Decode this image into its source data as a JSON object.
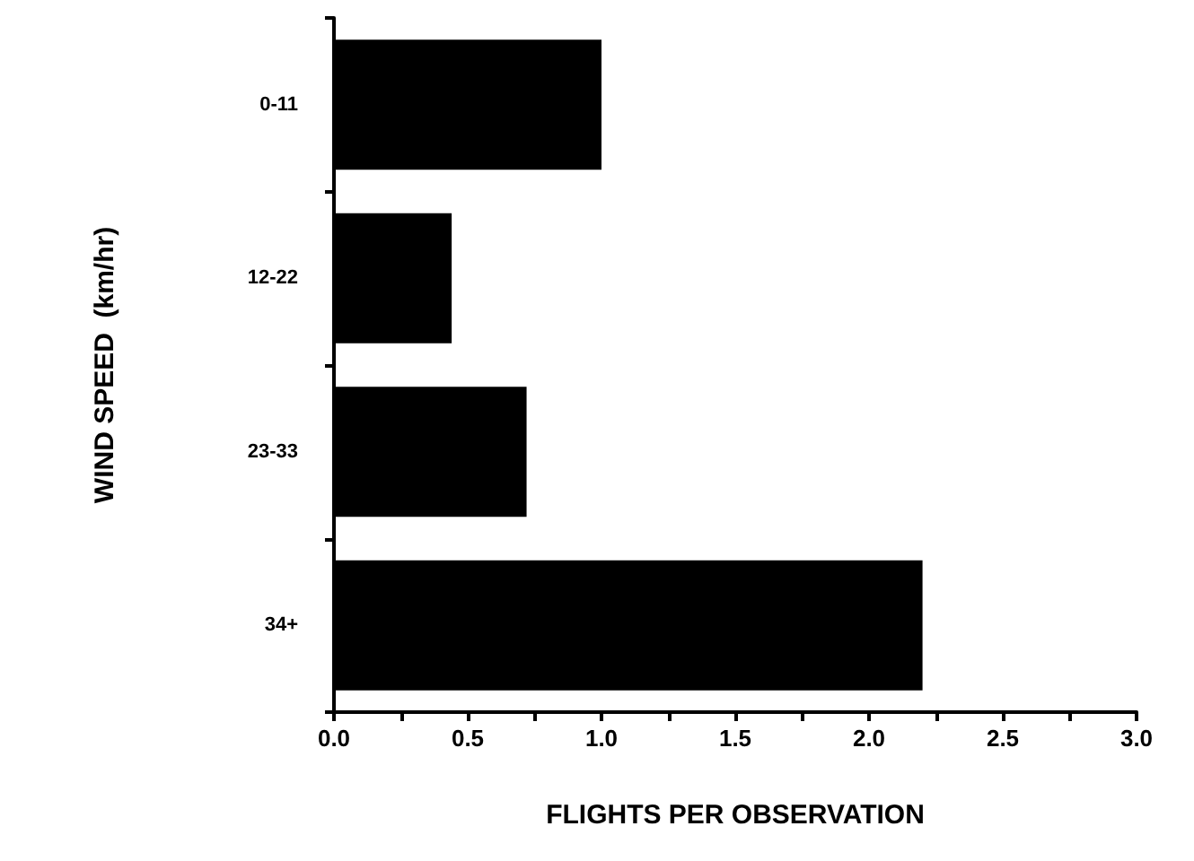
{
  "chart_data": {
    "type": "bar",
    "orientation": "horizontal",
    "xlabel": "FLIGHTS PER OBSERVATION",
    "ylabel": "WIND SPEED  (km/hr)",
    "categories": [
      "0-11",
      "12-22",
      "23-33",
      "34+"
    ],
    "values": [
      1.0,
      0.44,
      0.72,
      2.2
    ],
    "color": "#000000",
    "xlim": [
      0,
      3
    ],
    "xticks": [
      {
        "value": 0,
        "label": "0.0"
      },
      {
        "value": 0.25,
        "label": null
      },
      {
        "value": 0.5,
        "label": "0.5"
      },
      {
        "value": 0.75,
        "label": null
      },
      {
        "value": 1,
        "label": "1.0"
      },
      {
        "value": 1.25,
        "label": null
      },
      {
        "value": 1.5,
        "label": "1.5"
      },
      {
        "value": 1.75,
        "label": null
      },
      {
        "value": 2,
        "label": "2.0"
      },
      {
        "value": 2.25,
        "label": null
      },
      {
        "value": 2.5,
        "label": "2.5"
      },
      {
        "value": 2.75,
        "label": null
      },
      {
        "value": 3,
        "label": "3.0"
      }
    ],
    "grid": false
  }
}
